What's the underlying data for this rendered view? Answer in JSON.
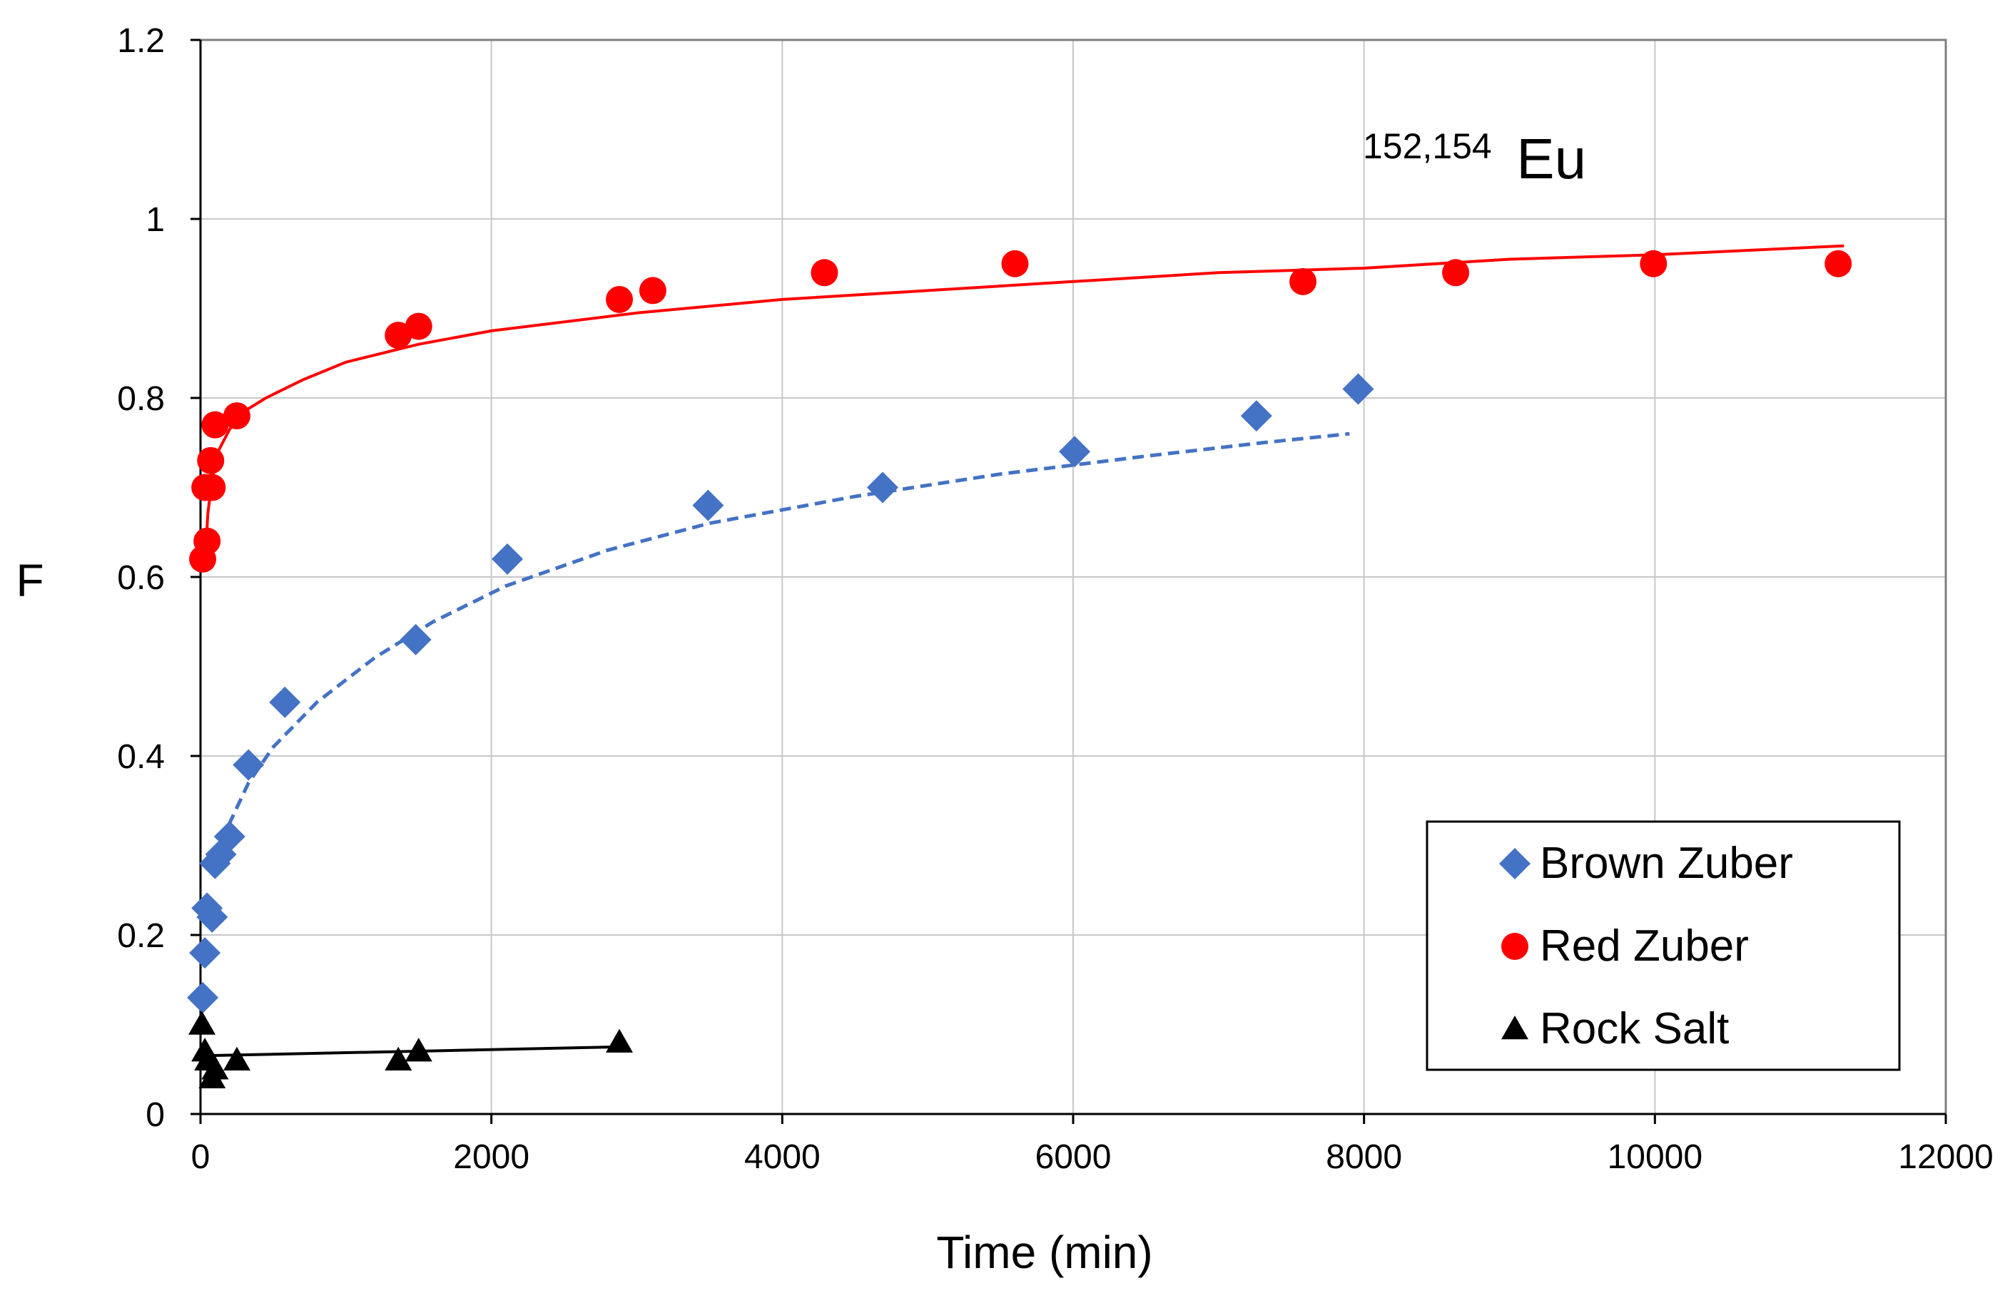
{
  "chart_data": {
    "type": "scatter",
    "title": "",
    "xlabel": "Time (min)",
    "ylabel": "F",
    "xlim": [
      0,
      12000
    ],
    "ylim": [
      0,
      1.2
    ],
    "x_ticks": [
      0,
      2000,
      4000,
      6000,
      8000,
      10000,
      12000
    ],
    "y_ticks": [
      0,
      0.2,
      0.4,
      0.6,
      0.8,
      1,
      1.2
    ],
    "x_tick_labels": [
      "0",
      "2000",
      "4000",
      "6000",
      "8000",
      "10000",
      "12000"
    ],
    "y_tick_labels": [
      "0",
      "0.2",
      "0.4",
      "0.6",
      "0.8",
      "1",
      "1.2"
    ],
    "grid": true,
    "legend_position": "bottom-right",
    "annotation": {
      "superscript": "152,154",
      "text": "Eu"
    },
    "series": [
      {
        "name": "Brown Zuber",
        "marker": "diamond",
        "color": "#4472C4",
        "fit_style": "dashed",
        "points": [
          [
            15,
            0.13
          ],
          [
            30,
            0.18
          ],
          [
            45,
            0.23
          ],
          [
            80,
            0.22
          ],
          [
            100,
            0.28
          ],
          [
            140,
            0.29
          ],
          [
            200,
            0.31
          ],
          [
            330,
            0.39
          ],
          [
            580,
            0.46
          ],
          [
            1480,
            0.53
          ],
          [
            2110,
            0.62
          ],
          [
            3490,
            0.68
          ],
          [
            4690,
            0.7
          ],
          [
            6010,
            0.74
          ],
          [
            7260,
            0.78
          ],
          [
            7960,
            0.81
          ]
        ],
        "fit": [
          [
            100,
            0.265
          ],
          [
            200,
            0.325
          ],
          [
            330,
            0.37
          ],
          [
            500,
            0.41
          ],
          [
            800,
            0.46
          ],
          [
            1200,
            0.51
          ],
          [
            1600,
            0.55
          ],
          [
            2100,
            0.59
          ],
          [
            2800,
            0.63
          ],
          [
            3500,
            0.66
          ],
          [
            4500,
            0.69
          ],
          [
            5500,
            0.715
          ],
          [
            6500,
            0.735
          ],
          [
            7300,
            0.75
          ],
          [
            7900,
            0.76
          ]
        ]
      },
      {
        "name": "Red Zuber",
        "marker": "circle",
        "color": "#FF0000",
        "fit_style": "solid",
        "points": [
          [
            15,
            0.62
          ],
          [
            30,
            0.7
          ],
          [
            45,
            0.64
          ],
          [
            70,
            0.73
          ],
          [
            80,
            0.7
          ],
          [
            100,
            0.77
          ],
          [
            250,
            0.78
          ],
          [
            1360,
            0.87
          ],
          [
            1500,
            0.88
          ],
          [
            2880,
            0.91
          ],
          [
            3110,
            0.92
          ],
          [
            4290,
            0.94
          ],
          [
            5600,
            0.95
          ],
          [
            7580,
            0.93
          ],
          [
            8630,
            0.94
          ],
          [
            9990,
            0.95
          ],
          [
            11260,
            0.95
          ]
        ],
        "fit": [
          [
            30,
            0.61
          ],
          [
            50,
            0.67
          ],
          [
            80,
            0.71
          ],
          [
            120,
            0.74
          ],
          [
            200,
            0.765
          ],
          [
            300,
            0.785
          ],
          [
            450,
            0.8
          ],
          [
            700,
            0.82
          ],
          [
            1000,
            0.84
          ],
          [
            1500,
            0.86
          ],
          [
            2000,
            0.875
          ],
          [
            3000,
            0.895
          ],
          [
            4000,
            0.91
          ],
          [
            5000,
            0.92
          ],
          [
            6000,
            0.93
          ],
          [
            7000,
            0.94
          ],
          [
            8000,
            0.945
          ],
          [
            9000,
            0.955
          ],
          [
            10000,
            0.96
          ],
          [
            11300,
            0.97
          ]
        ]
      },
      {
        "name": "Rock Salt",
        "marker": "triangle",
        "color": "#000000",
        "fit_style": "solid",
        "points": [
          [
            10,
            0.1
          ],
          [
            30,
            0.07
          ],
          [
            50,
            0.06
          ],
          [
            80,
            0.04
          ],
          [
            100,
            0.05
          ],
          [
            250,
            0.06
          ],
          [
            1360,
            0.06
          ],
          [
            1500,
            0.07
          ],
          [
            2880,
            0.08
          ]
        ],
        "fit": [
          [
            0,
            0.065
          ],
          [
            2880,
            0.075
          ]
        ]
      }
    ]
  }
}
